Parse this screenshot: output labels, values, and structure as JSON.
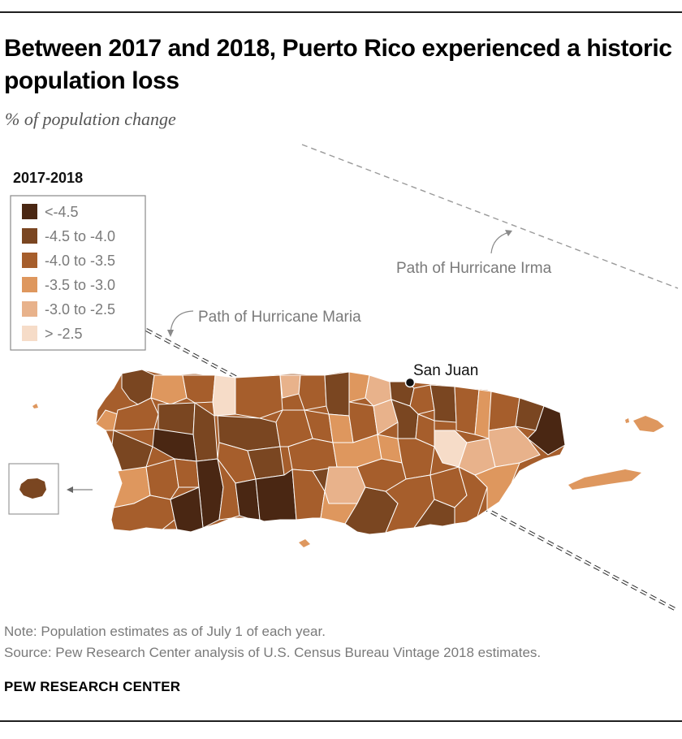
{
  "header": {
    "title": "Between 2017 and 2018, Puerto Rico experienced a historic population loss",
    "subtitle": "% of population change"
  },
  "map": {
    "legend": {
      "title": "2017-2018",
      "items": [
        {
          "label": "<-4.5",
          "color": "#4a2713"
        },
        {
          "label": "-4.5 to -4.0",
          "color": "#7a4621"
        },
        {
          "label": "-4.0 to -3.5",
          "color": "#a65e2c"
        },
        {
          "label": "-3.5 to -3.0",
          "color": "#de975e"
        },
        {
          "label": "-3.0 to -2.5",
          "color": "#e8b28b"
        },
        {
          "label": "> -2.5",
          "color": "#f6dcc8"
        }
      ]
    },
    "labels": {
      "irma": "Path of Hurricane Irma",
      "maria": "Path of Hurricane Maria",
      "city": "San Juan"
    }
  },
  "footer": {
    "note": "Note: Population estimates as of July 1 of each year.",
    "source": "Source: Pew Research Center analysis of U.S. Census Bureau Vintage 2018 estimates.",
    "brand": "PEW RESEARCH CENTER"
  }
}
